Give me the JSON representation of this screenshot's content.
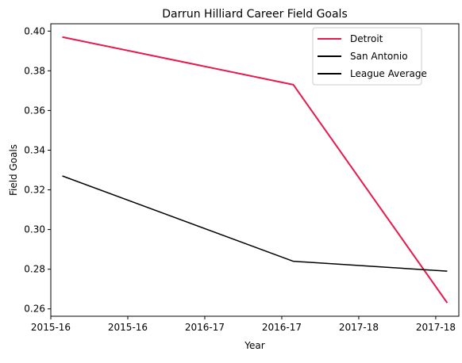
{
  "chart_data": {
    "type": "line",
    "title": "Darrun Hilliard Career Field Goals",
    "xlabel": "Year",
    "ylabel": "Field Goals",
    "x_tick_labels": [
      "2015-16",
      "2015-16",
      "2016-17",
      "2016-17",
      "2017-18",
      "2017-18"
    ],
    "x_range": [
      -0.06,
      2.06
    ],
    "x": [
      0,
      1.2,
      2
    ],
    "ylim": [
      0.2563,
      0.4037
    ],
    "y_ticks": [
      0.26,
      0.28,
      0.3,
      0.32,
      0.34,
      0.36,
      0.38,
      0.4
    ],
    "y_tick_labels": [
      "0.26",
      "0.28",
      "0.30",
      "0.32",
      "0.34",
      "0.36",
      "0.38",
      "0.40"
    ],
    "series": [
      {
        "name": "Detroit",
        "values": [
          0.397,
          0.373,
          0.263
        ],
        "color": "#e8194b",
        "drawn": true,
        "thick": true
      },
      {
        "name": "San Antonio",
        "values": [
          0.327,
          0.284,
          0.279
        ],
        "color": "#000000",
        "drawn": true,
        "thick": false
      },
      {
        "name": "League Average",
        "values": null,
        "color": "#000000",
        "drawn": false,
        "thick": true
      }
    ],
    "legend_position": "top-right",
    "grid": false
  }
}
